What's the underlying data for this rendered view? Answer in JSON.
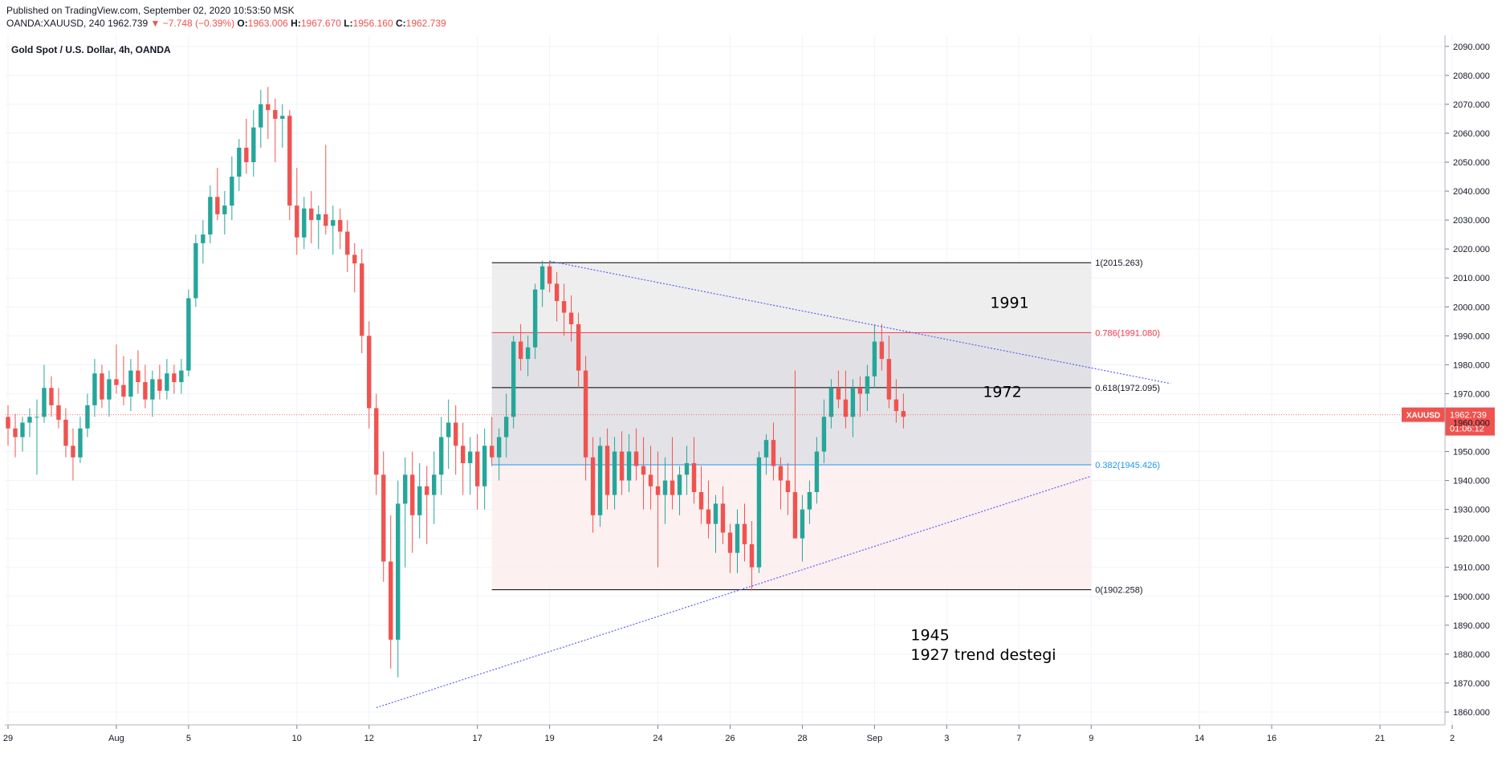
{
  "header": {
    "published": "Published on TradingView.com, September 02, 2020 10:53:50 MSK",
    "symbol_interval": "OANDA:XAUUSD, 240",
    "last": "1962.739",
    "change": "▼ −7.748 (−0.39%)",
    "o_label": "O:",
    "o_value": "1963.006",
    "h_label": "H:",
    "h_value": "1967.670",
    "l_label": "L:",
    "l_value": "1956.160",
    "c_label": "C:",
    "c_value": "1962.739"
  },
  "chart_data": {
    "type": "candlestick",
    "title": "Gold Spot / U.S. Dollar, 4h, OANDA",
    "ylim": [
      1855,
      2093
    ],
    "y_ticks": [
      1860,
      1870,
      1880,
      1890,
      1900,
      1910,
      1920,
      1930,
      1940,
      1950,
      1960,
      1970,
      1980,
      1990,
      2000,
      2010,
      2020,
      2030,
      2040,
      2050,
      2060,
      2070,
      2080,
      2090
    ],
    "x_ticks": [
      {
        "label": "29",
        "i": 0
      },
      {
        "label": "Aug",
        "i": 15
      },
      {
        "label": "5",
        "i": 25
      },
      {
        "label": "10",
        "i": 40
      },
      {
        "label": "12",
        "i": 50
      },
      {
        "label": "17",
        "i": 65
      },
      {
        "label": "19",
        "i": 75
      },
      {
        "label": "24",
        "i": 90
      },
      {
        "label": "26",
        "i": 100
      },
      {
        "label": "28",
        "i": 110
      },
      {
        "label": "Sep",
        "i": 120
      },
      {
        "label": "3",
        "i": 130
      },
      {
        "label": "7",
        "i": 140
      },
      {
        "label": "9",
        "i": 150
      },
      {
        "label": "14",
        "i": 165
      },
      {
        "label": "16",
        "i": 175
      },
      {
        "label": "21",
        "i": 190
      },
      {
        "label": "2",
        "i": 200
      }
    ],
    "ohlc": [
      [
        1962,
        1966,
        1952,
        1958
      ],
      [
        1958,
        1963,
        1948,
        1955
      ],
      [
        1955,
        1962,
        1950,
        1960
      ],
      [
        1960,
        1965,
        1955,
        1962
      ],
      [
        1962,
        1968,
        1942,
        1962
      ],
      [
        1962,
        1980,
        1960,
        1972
      ],
      [
        1972,
        1976,
        1962,
        1966
      ],
      [
        1966,
        1972,
        1958,
        1961
      ],
      [
        1961,
        1965,
        1948,
        1952
      ],
      [
        1952,
        1958,
        1940,
        1948
      ],
      [
        1948,
        1962,
        1946,
        1958
      ],
      [
        1958,
        1970,
        1955,
        1966
      ],
      [
        1966,
        1982,
        1962,
        1977
      ],
      [
        1977,
        1980,
        1965,
        1968
      ],
      [
        1968,
        1978,
        1962,
        1975
      ],
      [
        1975,
        1987,
        1970,
        1973
      ],
      [
        1973,
        1983,
        1966,
        1969
      ],
      [
        1969,
        1982,
        1964,
        1978
      ],
      [
        1978,
        1985,
        1970,
        1974
      ],
      [
        1974,
        1980,
        1965,
        1968
      ],
      [
        1968,
        1978,
        1962,
        1975
      ],
      [
        1975,
        1980,
        1968,
        1971
      ],
      [
        1971,
        1982,
        1968,
        1977
      ],
      [
        1977,
        1980,
        1970,
        1974
      ],
      [
        1974,
        1982,
        1970,
        1978
      ],
      [
        1978,
        2006,
        1976,
        2003
      ],
      [
        2003,
        2025,
        2000,
        2022
      ],
      [
        2022,
        2030,
        2015,
        2025
      ],
      [
        2025,
        2042,
        2022,
        2038
      ],
      [
        2038,
        2048,
        2030,
        2032
      ],
      [
        2032,
        2040,
        2025,
        2035
      ],
      [
        2035,
        2052,
        2030,
        2045
      ],
      [
        2045,
        2058,
        2040,
        2055
      ],
      [
        2055,
        2065,
        2046,
        2050
      ],
      [
        2050,
        2068,
        2045,
        2062
      ],
      [
        2062,
        2075,
        2055,
        2070
      ],
      [
        2070,
        2076,
        2058,
        2068
      ],
      [
        2068,
        2072,
        2050,
        2065
      ],
      [
        2065,
        2070,
        2055,
        2066
      ],
      [
        2066,
        2068,
        2030,
        2035
      ],
      [
        2035,
        2048,
        2018,
        2024
      ],
      [
        2024,
        2038,
        2020,
        2034
      ],
      [
        2034,
        2040,
        2022,
        2030
      ],
      [
        2030,
        2035,
        2020,
        2032
      ],
      [
        2032,
        2056,
        2025,
        2028
      ],
      [
        2028,
        2035,
        2018,
        2030
      ],
      [
        2030,
        2034,
        2020,
        2026
      ],
      [
        2026,
        2030,
        2012,
        2018
      ],
      [
        2018,
        2022,
        2005,
        2015
      ],
      [
        2015,
        2020,
        1984,
        1990
      ],
      [
        1990,
        1995,
        1958,
        1965
      ],
      [
        1965,
        1970,
        1935,
        1942
      ],
      [
        1942,
        1950,
        1905,
        1912
      ],
      [
        1912,
        1928,
        1875,
        1885
      ],
      [
        1885,
        1940,
        1872,
        1932
      ],
      [
        1932,
        1948,
        1910,
        1942
      ],
      [
        1942,
        1950,
        1915,
        1928
      ],
      [
        1928,
        1946,
        1920,
        1938
      ],
      [
        1938,
        1945,
        1918,
        1935
      ],
      [
        1935,
        1950,
        1925,
        1942
      ],
      [
        1942,
        1962,
        1935,
        1955
      ],
      [
        1955,
        1968,
        1944,
        1960
      ],
      [
        1960,
        1966,
        1942,
        1952
      ],
      [
        1952,
        1960,
        1935,
        1946
      ],
      [
        1946,
        1955,
        1935,
        1950
      ],
      [
        1950,
        1956,
        1930,
        1938
      ],
      [
        1938,
        1958,
        1930,
        1952
      ],
      [
        1952,
        1962,
        1945,
        1948
      ],
      [
        1948,
        1958,
        1940,
        1955
      ],
      [
        1955,
        1970,
        1948,
        1962
      ],
      [
        1962,
        1990,
        1958,
        1988
      ],
      [
        1988,
        1994,
        1978,
        1982
      ],
      [
        1982,
        1990,
        1976,
        1986
      ],
      [
        1986,
        2008,
        1982,
        2006
      ],
      [
        2006,
        2016,
        2000,
        2014
      ],
      [
        2014,
        2016,
        2005,
        2008
      ],
      [
        2008,
        2012,
        1995,
        2002
      ],
      [
        2002,
        2008,
        1990,
        1998
      ],
      [
        1998,
        2004,
        1988,
        1994
      ],
      [
        1994,
        1998,
        1972,
        1978
      ],
      [
        1978,
        1983,
        1940,
        1948
      ],
      [
        1948,
        1955,
        1922,
        1928
      ],
      [
        1928,
        1955,
        1924,
        1952
      ],
      [
        1952,
        1958,
        1930,
        1935
      ],
      [
        1935,
        1955,
        1930,
        1950
      ],
      [
        1950,
        1957,
        1935,
        1940
      ],
      [
        1940,
        1956,
        1936,
        1950
      ],
      [
        1950,
        1958,
        1940,
        1945
      ],
      [
        1945,
        1955,
        1930,
        1942
      ],
      [
        1942,
        1952,
        1930,
        1938
      ],
      [
        1938,
        1950,
        1910,
        1935
      ],
      [
        1935,
        1948,
        1925,
        1940
      ],
      [
        1940,
        1955,
        1930,
        1935
      ],
      [
        1935,
        1945,
        1928,
        1942
      ],
      [
        1942,
        1952,
        1935,
        1946
      ],
      [
        1946,
        1955,
        1932,
        1936
      ],
      [
        1936,
        1945,
        1925,
        1930
      ],
      [
        1930,
        1940,
        1920,
        1925
      ],
      [
        1925,
        1935,
        1915,
        1932
      ],
      [
        1932,
        1938,
        1918,
        1922
      ],
      [
        1922,
        1925,
        1908,
        1915
      ],
      [
        1915,
        1930,
        1908,
        1925
      ],
      [
        1925,
        1932,
        1912,
        1918
      ],
      [
        1918,
        1926,
        1902,
        1910
      ],
      [
        1910,
        1950,
        1908,
        1948
      ],
      [
        1948,
        1956,
        1942,
        1954
      ],
      [
        1954,
        1960,
        1940,
        1945
      ],
      [
        1945,
        1948,
        1930,
        1940
      ],
      [
        1940,
        1946,
        1928,
        1936
      ],
      [
        1936,
        1978,
        1920,
        1920
      ],
      [
        1920,
        1935,
        1912,
        1930
      ],
      [
        1930,
        1940,
        1925,
        1936
      ],
      [
        1936,
        1955,
        1932,
        1950
      ],
      [
        1950,
        1968,
        1946,
        1962
      ],
      [
        1962,
        1975,
        1958,
        1972
      ],
      [
        1972,
        1978,
        1965,
        1968
      ],
      [
        1968,
        1978,
        1958,
        1962
      ],
      [
        1962,
        1975,
        1955,
        1972
      ],
      [
        1972,
        1976,
        1962,
        1970
      ],
      [
        1970,
        1980,
        1964,
        1976
      ],
      [
        1976,
        1994,
        1972,
        1988
      ],
      [
        1988,
        1994,
        1978,
        1982
      ],
      [
        1982,
        1990,
        1965,
        1968
      ],
      [
        1968,
        1975,
        1960,
        1964
      ],
      [
        1964,
        1970,
        1958,
        1962
      ]
    ],
    "fib": {
      "levels": [
        {
          "label": "1(2015.263)",
          "value": 2015.263,
          "color": "#000000"
        },
        {
          "label": "0.786(1991.080)",
          "value": 1991.08,
          "color": "#f23645"
        },
        {
          "label": "0.618(1972.095)",
          "value": 1972.095,
          "color": "#000000"
        },
        {
          "label": "0.382(1945.426)",
          "value": 1945.426,
          "color": "#2196f3"
        },
        {
          "label": "0(1902.258)",
          "value": 1902.258,
          "color": "#000000"
        }
      ],
      "i_start": 67,
      "i_end": 150
    },
    "trendlines": [
      {
        "from": {
          "i": 75,
          "y": 2015.8
        },
        "to": {
          "i": 161,
          "y": 1973.5
        }
      },
      {
        "from": {
          "i": 51,
          "y": 1861.5
        },
        "to": {
          "i": 150,
          "y": 1941.5
        }
      }
    ],
    "current_price": {
      "symbol": "XAUUSD",
      "value": 1962.739,
      "countdown": "01:06:12"
    },
    "annotations": [
      {
        "text": "1991",
        "i": 136,
        "y": 1999.6
      },
      {
        "text": "1972",
        "i": 135,
        "y": 1968.8
      },
      {
        "text": "1945",
        "i": 125,
        "y": 1884.8
      },
      {
        "text": "1927 trend destegi",
        "i": 125,
        "y": 1878.0
      }
    ],
    "colors": {
      "up": "#26a69a",
      "down": "#ef5350",
      "trend": "#5c5ff5"
    }
  }
}
